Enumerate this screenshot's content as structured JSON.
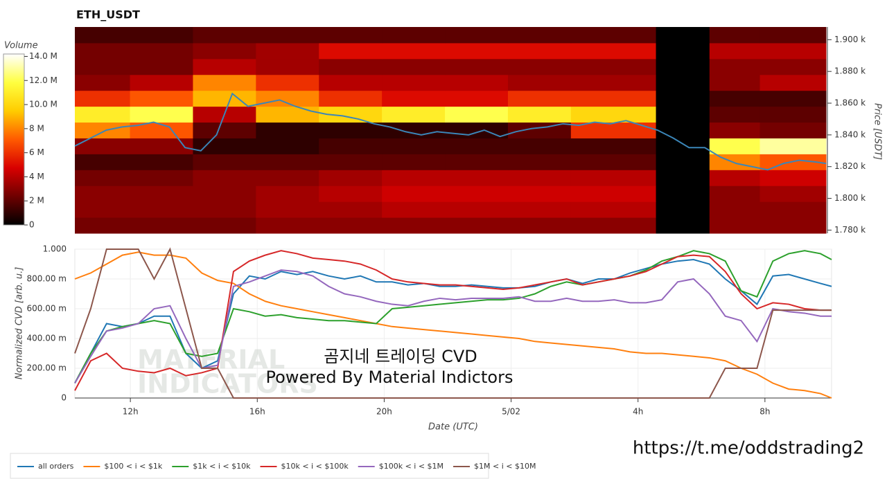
{
  "chart_data": [
    {
      "type": "heatmap",
      "title": "ETH_USDT",
      "y_label": "Price [USDT]",
      "xlim": [
        10.25,
        34.1
      ],
      "ylim": [
        1778,
        1908
      ],
      "yticks": [
        {
          "value": 1780,
          "label": "1.780 k"
        },
        {
          "value": 1800,
          "label": "1.800 k"
        },
        {
          "value": 1820,
          "label": "1.820 k"
        },
        {
          "value": 1840,
          "label": "1.840 k"
        },
        {
          "value": 1860,
          "label": "1.860 k"
        },
        {
          "value": 1880,
          "label": "1.880 k"
        },
        {
          "value": 1900,
          "label": "1.900 k"
        }
      ],
      "x_bins": [
        10.25,
        12,
        14,
        16,
        18,
        20,
        22,
        24,
        26,
        28.7,
        30.4,
        32,
        34.1
      ],
      "y_bins": [
        1778,
        1788,
        1798,
        1808,
        1818,
        1828,
        1838,
        1848,
        1858,
        1868,
        1878,
        1888,
        1898,
        1908
      ],
      "z": [
        [
          2.5,
          2.5,
          2.5,
          3,
          3,
          3,
          3,
          3,
          3,
          0,
          3,
          3
        ],
        [
          3,
          3,
          3,
          3.5,
          3.5,
          4,
          4,
          4,
          4,
          0,
          3,
          3
        ],
        [
          3,
          3,
          3,
          3.5,
          4,
          4.5,
          4.5,
          4.5,
          4.5,
          0,
          3,
          3.5
        ],
        [
          2.5,
          2.5,
          3,
          3,
          3.5,
          4,
          4,
          4,
          4,
          0,
          4,
          4.5
        ],
        [
          1.5,
          1.5,
          2,
          2,
          2,
          2,
          2,
          2,
          2,
          0,
          8,
          7
        ],
        [
          3,
          3,
          1,
          1,
          1.5,
          1.5,
          1.5,
          1.5,
          1.5,
          0,
          12,
          13
        ],
        [
          8,
          7,
          2,
          1,
          1,
          1,
          1,
          2,
          6,
          0,
          3,
          2.5
        ],
        [
          11,
          12,
          4,
          9,
          10,
          11,
          12,
          11,
          10,
          0,
          2,
          2
        ],
        [
          6,
          7,
          9,
          8,
          6,
          5,
          5,
          6,
          6,
          0,
          1.5,
          1.5
        ],
        [
          3,
          4,
          8,
          6,
          4,
          4,
          4,
          3.5,
          3.5,
          0,
          3,
          4
        ],
        [
          2.5,
          2.5,
          4,
          3.5,
          3,
          3,
          3,
          3,
          3,
          0,
          3,
          3
        ],
        [
          2.5,
          2.5,
          3,
          3.5,
          5,
          5,
          5,
          5,
          5,
          0,
          4,
          4
        ],
        [
          1.5,
          1.5,
          2,
          2,
          2,
          2,
          2,
          2,
          2,
          0,
          2,
          2
        ]
      ],
      "colormap": [
        "#000000",
        "#6e0000",
        "#d80000",
        "#ff5a00",
        "#ffcc00",
        "#ffff40",
        "#ffffff"
      ],
      "colorbar": {
        "label": "Volume",
        "lim": [
          0,
          14.2
        ],
        "ticks": [
          0,
          {
            "value": 2,
            "label": "2 M"
          },
          {
            "value": 4,
            "label": "4 M"
          },
          {
            "value": 6,
            "label": "6 M"
          },
          {
            "value": 8,
            "label": "8 M"
          },
          {
            "value": 10,
            "label": "10.0 M"
          },
          {
            "value": 12,
            "label": "12.0 M"
          },
          {
            "value": 14,
            "label": "14.0 M"
          }
        ]
      },
      "price": {
        "color": "#3b86b8",
        "x": [
          10.25,
          10.75,
          11.25,
          11.75,
          12.25,
          12.75,
          13.25,
          13.75,
          14.25,
          14.75,
          15.25,
          15.75,
          16.25,
          16.75,
          17.25,
          17.75,
          18.25,
          18.75,
          19.25,
          19.75,
          20.25,
          20.75,
          21.25,
          21.75,
          22.25,
          22.75,
          23.25,
          23.75,
          24.25,
          24.75,
          25.25,
          25.75,
          26.25,
          26.75,
          27.25,
          27.75,
          28.25,
          28.75,
          29.25,
          29.75,
          30.25,
          30.75,
          31.25,
          31.75,
          32.25,
          32.75,
          33.25,
          33.75,
          34.1
        ],
        "values": [
          1833,
          1838,
          1843,
          1845,
          1846,
          1848,
          1845,
          1832,
          1830,
          1840,
          1866,
          1858,
          1860,
          1862,
          1858,
          1855,
          1853,
          1852,
          1850,
          1847,
          1845,
          1842,
          1840,
          1842,
          1841,
          1840,
          1843,
          1839,
          1842,
          1844,
          1845,
          1847,
          1846,
          1848,
          1847,
          1849,
          1846,
          1843,
          1838,
          1832,
          1832,
          1826,
          1822,
          1820,
          1818,
          1822,
          1824,
          1823,
          1822
        ]
      }
    },
    {
      "type": "line",
      "x_label": "Date (UTC)",
      "y_label": "Normalized CVD [arb. u.]",
      "xlim": [
        10.25,
        34.1
      ],
      "xticks": [
        {
          "value": 12,
          "label": "12h"
        },
        {
          "value": 16,
          "label": "16h"
        },
        {
          "value": 20,
          "label": "20h"
        },
        {
          "value": 24,
          "label": "5/02"
        },
        {
          "value": 28,
          "label": "4h"
        },
        {
          "value": 32,
          "label": "8h"
        }
      ],
      "ylim": [
        0,
        1
      ],
      "yticks": [
        0,
        {
          "value": 0.2,
          "label": "200.00 m"
        },
        {
          "value": 0.4,
          "label": "400.00 m"
        },
        {
          "value": 0.6,
          "label": "600.00 m"
        },
        {
          "value": 0.8,
          "label": "800.00 m"
        },
        {
          "value": 1,
          "label": "1.000"
        }
      ],
      "grid": true,
      "x": [
        10.25,
        10.75,
        11.25,
        11.75,
        12.25,
        12.75,
        13.25,
        13.75,
        14.25,
        14.75,
        15.25,
        15.75,
        16.25,
        16.75,
        17.25,
        17.75,
        18.25,
        18.75,
        19.25,
        19.75,
        20.25,
        20.75,
        21.25,
        21.75,
        22.25,
        22.75,
        23.25,
        23.75,
        24.25,
        24.75,
        25.25,
        25.75,
        26.25,
        26.75,
        27.25,
        27.75,
        28.25,
        28.75,
        29.25,
        29.75,
        30.25,
        30.75,
        31.25,
        31.75,
        32.25,
        32.75,
        33.25,
        33.75,
        34.1
      ],
      "series": [
        {
          "name": "all orders",
          "color": "#1f77b4",
          "values": [
            0.1,
            0.3,
            0.5,
            0.48,
            0.5,
            0.55,
            0.55,
            0.3,
            0.2,
            0.25,
            0.7,
            0.82,
            0.8,
            0.85,
            0.83,
            0.85,
            0.82,
            0.8,
            0.82,
            0.78,
            0.78,
            0.76,
            0.77,
            0.75,
            0.75,
            0.76,
            0.75,
            0.74,
            0.74,
            0.75,
            0.78,
            0.8,
            0.77,
            0.8,
            0.8,
            0.84,
            0.87,
            0.9,
            0.92,
            0.93,
            0.9,
            0.8,
            0.72,
            0.63,
            0.82,
            0.83,
            0.8,
            0.77,
            0.75
          ]
        },
        {
          "name": "$100 < i < $1k",
          "color": "#ff7f0e",
          "values": [
            0.8,
            0.84,
            0.9,
            0.96,
            0.98,
            0.96,
            0.96,
            0.94,
            0.84,
            0.79,
            0.77,
            0.7,
            0.65,
            0.62,
            0.6,
            0.58,
            0.56,
            0.54,
            0.52,
            0.5,
            0.48,
            0.47,
            0.46,
            0.45,
            0.44,
            0.43,
            0.42,
            0.41,
            0.4,
            0.38,
            0.37,
            0.36,
            0.35,
            0.34,
            0.33,
            0.31,
            0.3,
            0.3,
            0.29,
            0.28,
            0.27,
            0.25,
            0.2,
            0.16,
            0.1,
            0.06,
            0.05,
            0.03,
            0
          ]
        },
        {
          "name": "$1k < i < $10k",
          "color": "#2ca02c",
          "values": [
            0.1,
            0.3,
            0.45,
            0.48,
            0.5,
            0.52,
            0.5,
            0.3,
            0.28,
            0.3,
            0.6,
            0.58,
            0.55,
            0.56,
            0.54,
            0.53,
            0.52,
            0.52,
            0.51,
            0.5,
            0.6,
            0.61,
            0.62,
            0.63,
            0.64,
            0.65,
            0.66,
            0.66,
            0.67,
            0.7,
            0.75,
            0.78,
            0.76,
            0.78,
            0.8,
            0.82,
            0.86,
            0.92,
            0.95,
            0.99,
            0.97,
            0.92,
            0.72,
            0.68,
            0.92,
            0.97,
            0.99,
            0.97,
            0.93
          ]
        },
        {
          "name": "$10k < i < $100k",
          "color": "#d62728",
          "values": [
            0.05,
            0.25,
            0.3,
            0.2,
            0.18,
            0.17,
            0.2,
            0.15,
            0.17,
            0.2,
            0.85,
            0.92,
            0.96,
            0.99,
            0.97,
            0.94,
            0.93,
            0.92,
            0.9,
            0.86,
            0.8,
            0.78,
            0.77,
            0.76,
            0.76,
            0.75,
            0.74,
            0.73,
            0.74,
            0.76,
            0.78,
            0.8,
            0.76,
            0.78,
            0.8,
            0.82,
            0.85,
            0.9,
            0.95,
            0.96,
            0.95,
            0.85,
            0.7,
            0.6,
            0.64,
            0.63,
            0.6,
            0.59,
            0.59
          ]
        },
        {
          "name": "$100k < i < $1M",
          "color": "#9467bd",
          "values": [
            0.1,
            0.28,
            0.45,
            0.47,
            0.5,
            0.6,
            0.62,
            0.4,
            0.2,
            0.22,
            0.75,
            0.78,
            0.82,
            0.86,
            0.85,
            0.82,
            0.75,
            0.7,
            0.68,
            0.65,
            0.63,
            0.62,
            0.65,
            0.67,
            0.66,
            0.67,
            0.67,
            0.67,
            0.68,
            0.65,
            0.65,
            0.67,
            0.65,
            0.65,
            0.66,
            0.64,
            0.64,
            0.66,
            0.78,
            0.8,
            0.7,
            0.55,
            0.52,
            0.38,
            0.6,
            0.58,
            0.57,
            0.55,
            0.55
          ]
        },
        {
          "name": "$1M < i < $10M",
          "color": "#8c564b",
          "values": [
            0.3,
            0.6,
            1,
            1,
            1,
            0.8,
            1,
            0.6,
            0.2,
            0.2,
            0,
            0,
            0,
            0,
            0,
            0,
            0,
            0,
            0,
            0,
            0,
            0,
            0,
            0,
            0,
            0,
            0,
            0,
            0,
            0,
            0,
            0,
            0,
            0,
            0,
            0,
            0,
            0,
            0,
            0,
            0,
            0.2,
            0.2,
            0.2,
            0.59,
            0.59,
            0.59,
            0.59,
            0.59
          ]
        }
      ],
      "annotations": [
        "곰지네 트레이딩 CVD",
        "Powered By Material Indictors"
      ],
      "watermark": [
        "MATERIAL",
        "INDICATORS"
      ]
    }
  ],
  "link": "https://t.me/oddstrading2"
}
